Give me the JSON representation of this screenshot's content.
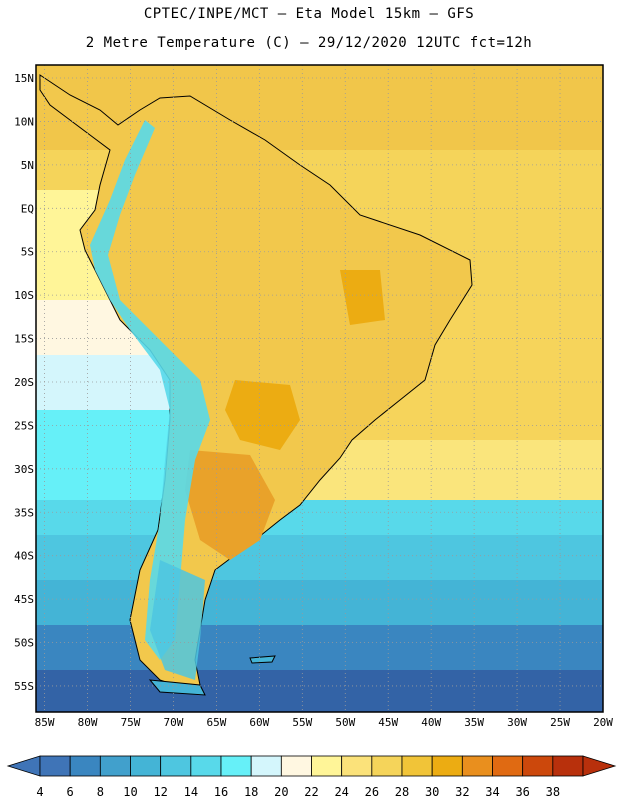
{
  "header": {
    "line1": "CPTEC/INPE/MCT –  Eta Model 15km – GFS",
    "line2": "2 Metre Temperature (C) – 29/12/2020 12UTC fct=12h"
  },
  "map": {
    "lat_labels": [
      "15N",
      "10N",
      "5N",
      "EQ",
      "5S",
      "10S",
      "15S",
      "20S",
      "25S",
      "30S",
      "35S",
      "40S",
      "45S",
      "50S",
      "55S"
    ],
    "lon_labels": [
      "85W",
      "80W",
      "75W",
      "70W",
      "65W",
      "60W",
      "55W",
      "50W",
      "45W",
      "40W",
      "35W",
      "30W",
      "25W",
      "20W"
    ],
    "lat_range": [
      -58,
      16.5
    ],
    "lon_range": [
      -86,
      -20
    ]
  },
  "colorbar": {
    "labels": [
      "4",
      "6",
      "8",
      "10",
      "12",
      "14",
      "16",
      "18",
      "20",
      "22",
      "24",
      "26",
      "28",
      "30",
      "32",
      "34",
      "36",
      "38"
    ],
    "colors": [
      "#3f74b7",
      "#3a86c0",
      "#41a0cc",
      "#44b4d6",
      "#4ec6e0",
      "#58d9ea",
      "#66f0f8",
      "#d4f6fc",
      "#fff7e1",
      "#fff598",
      "#fbe27a",
      "#f5d45a",
      "#f1c438",
      "#ecac12",
      "#e98f1e",
      "#e06a12",
      "#cc480c",
      "#b8300c"
    ]
  }
}
